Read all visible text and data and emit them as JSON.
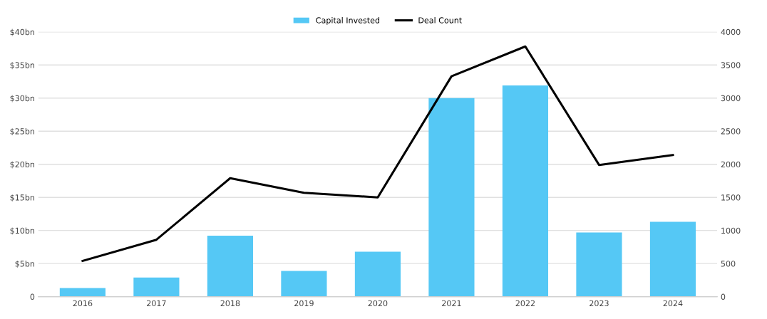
{
  "chart_data": {
    "type": "bar",
    "categories": [
      "2016",
      "2017",
      "2018",
      "2019",
      "2020",
      "2021",
      "2022",
      "2023",
      "2024"
    ],
    "series": [
      {
        "name": "Capital Invested",
        "color": "#55c8f5",
        "values": [
          1.3,
          2.9,
          9.2,
          3.9,
          6.8,
          30.0,
          31.9,
          9.7,
          11.3
        ]
      },
      {
        "name": "Deal Count",
        "type": "line",
        "axis": "y2",
        "color": "#000000",
        "values": [
          540,
          860,
          1790,
          1570,
          1500,
          3330,
          3780,
          1990,
          2140
        ]
      }
    ],
    "ylim": [
      0,
      40
    ],
    "yticks": [
      0,
      {
        "value": 5,
        "label": "$5bn"
      },
      {
        "value": 10,
        "label": "$10bn"
      },
      {
        "value": 15,
        "label": "$15bn"
      },
      {
        "value": 20,
        "label": "$20bn"
      },
      {
        "value": 25,
        "label": "$25bn"
      },
      {
        "value": 30,
        "label": "$30bn"
      },
      {
        "value": 35,
        "label": "$35bn"
      },
      {
        "value": 40,
        "label": "$40bn"
      }
    ],
    "y2lim": [
      0,
      4000
    ],
    "y2ticks": [
      0,
      500,
      1000,
      1500,
      2000,
      2500,
      3000,
      3500,
      4000
    ],
    "grid": "y",
    "legend": "top",
    "marker": "none",
    "line_style": "solid"
  }
}
